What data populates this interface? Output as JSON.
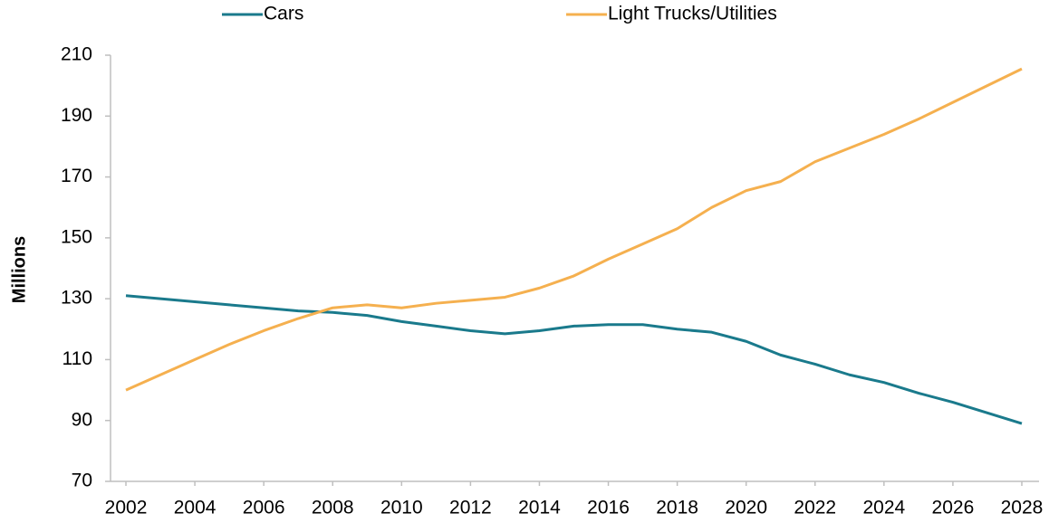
{
  "chart_data": {
    "type": "line",
    "y_label": "Millions",
    "x": [
      2002,
      2003,
      2004,
      2005,
      2006,
      2007,
      2008,
      2009,
      2010,
      2011,
      2012,
      2013,
      2014,
      2015,
      2016,
      2017,
      2018,
      2019,
      2020,
      2021,
      2022,
      2023,
      2024,
      2025,
      2026,
      2027,
      2028
    ],
    "series": [
      {
        "name": "Cars",
        "color": "#1a7a8c",
        "values": [
          131,
          130,
          129,
          128,
          127,
          126,
          125.5,
          124.5,
          122.5,
          121,
          119.5,
          118.5,
          119.5,
          121,
          121.5,
          121.5,
          120,
          119,
          116,
          111.5,
          108.5,
          105,
          102.5,
          99,
          96,
          92.5,
          89
        ]
      },
      {
        "name": "Light Trucks/Utilities",
        "color": "#f5b04f",
        "values": [
          100,
          105,
          110,
          115,
          119.5,
          123.5,
          127,
          128,
          127,
          128.5,
          129.5,
          130.5,
          133.5,
          137.5,
          143,
          148,
          153,
          160,
          165.5,
          168.5,
          175,
          179.5,
          184,
          189,
          194.5,
          200,
          205.5
        ]
      }
    ],
    "xlim": [
      2001.5,
      2028.5
    ],
    "xticks": [
      2002,
      2004,
      2006,
      2008,
      2010,
      2012,
      2014,
      2016,
      2018,
      2020,
      2022,
      2024,
      2026,
      2028
    ],
    "ylim": [
      70,
      210
    ],
    "yticks": [
      70,
      90,
      110,
      130,
      150,
      170,
      190,
      210
    ],
    "grid": false,
    "legend": "top"
  }
}
